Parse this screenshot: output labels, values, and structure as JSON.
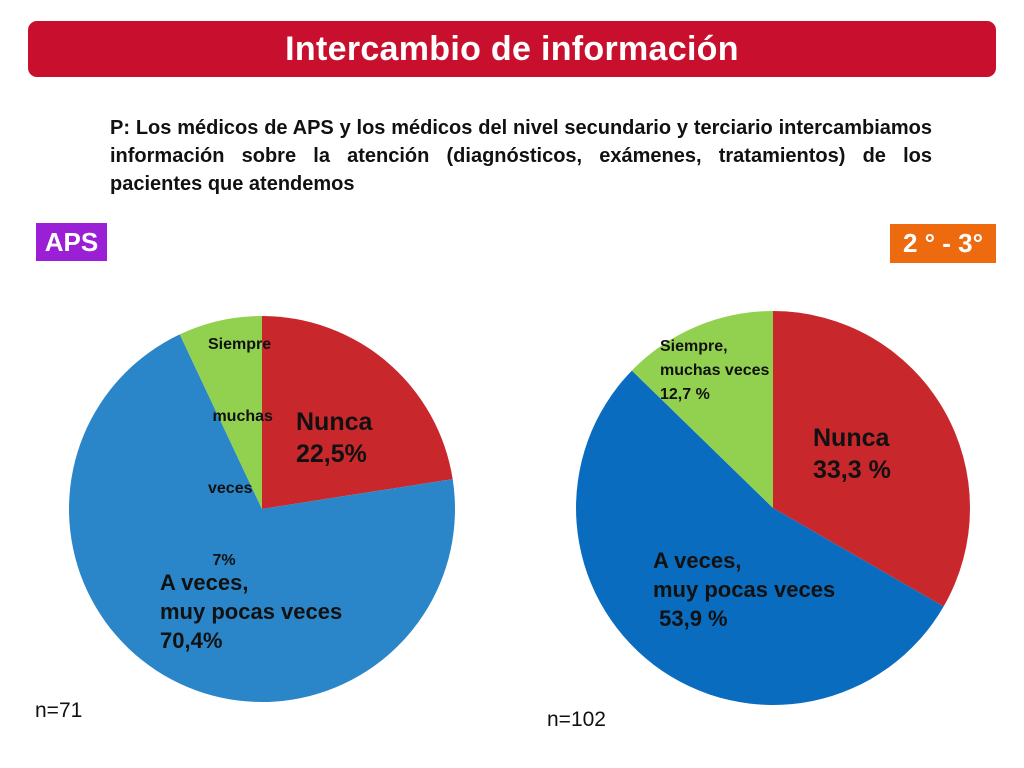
{
  "header": {
    "title": "Intercambio de información"
  },
  "question": "P: Los médicos de APS y los médicos del nivel secundario y terciario intercambiamos información sobre la atención (diagnósticos, exámenes, tratamientos) de los pacientes que atendemos",
  "colors": {
    "title_bar": "#c8102e",
    "aps_badge": "#9b1fd4",
    "sec_badge": "#ee6a0f",
    "nunca": "#c8272c",
    "a_veces": "#2a86c8",
    "a_veces_2": "#0a6cbf",
    "siempre": "#92d050"
  },
  "chart_data": [
    {
      "type": "pie",
      "badge": "APS",
      "n_label": "n=71",
      "slices": [
        {
          "name": "Nunca",
          "value": 22.5,
          "label_lines": [
            "Nunca",
            "22,5%"
          ]
        },
        {
          "name": "A veces, muy pocas veces",
          "value": 70.4,
          "label_lines": [
            "A veces,",
            "muy pocas veces",
            "70,4%"
          ]
        },
        {
          "name": "Siempre muchas veces",
          "value": 7,
          "label_lines": [
            "Siempre",
            " muchas",
            "veces",
            " 7%"
          ]
        }
      ]
    },
    {
      "type": "pie",
      "badge": "2 ° - 3°",
      "n_label": "n=102",
      "slices": [
        {
          "name": "Nunca",
          "value": 33.3,
          "label_lines": [
            "Nunca",
            "33,3 %"
          ]
        },
        {
          "name": "A veces, muy pocas veces",
          "value": 53.9,
          "label_lines": [
            "A veces,",
            "muy pocas veces",
            " 53,9 %"
          ]
        },
        {
          "name": "Siempre, muchas veces",
          "value": 12.7,
          "label_lines": [
            "Siempre,",
            "muchas veces",
            "12,7 %"
          ]
        }
      ]
    }
  ]
}
